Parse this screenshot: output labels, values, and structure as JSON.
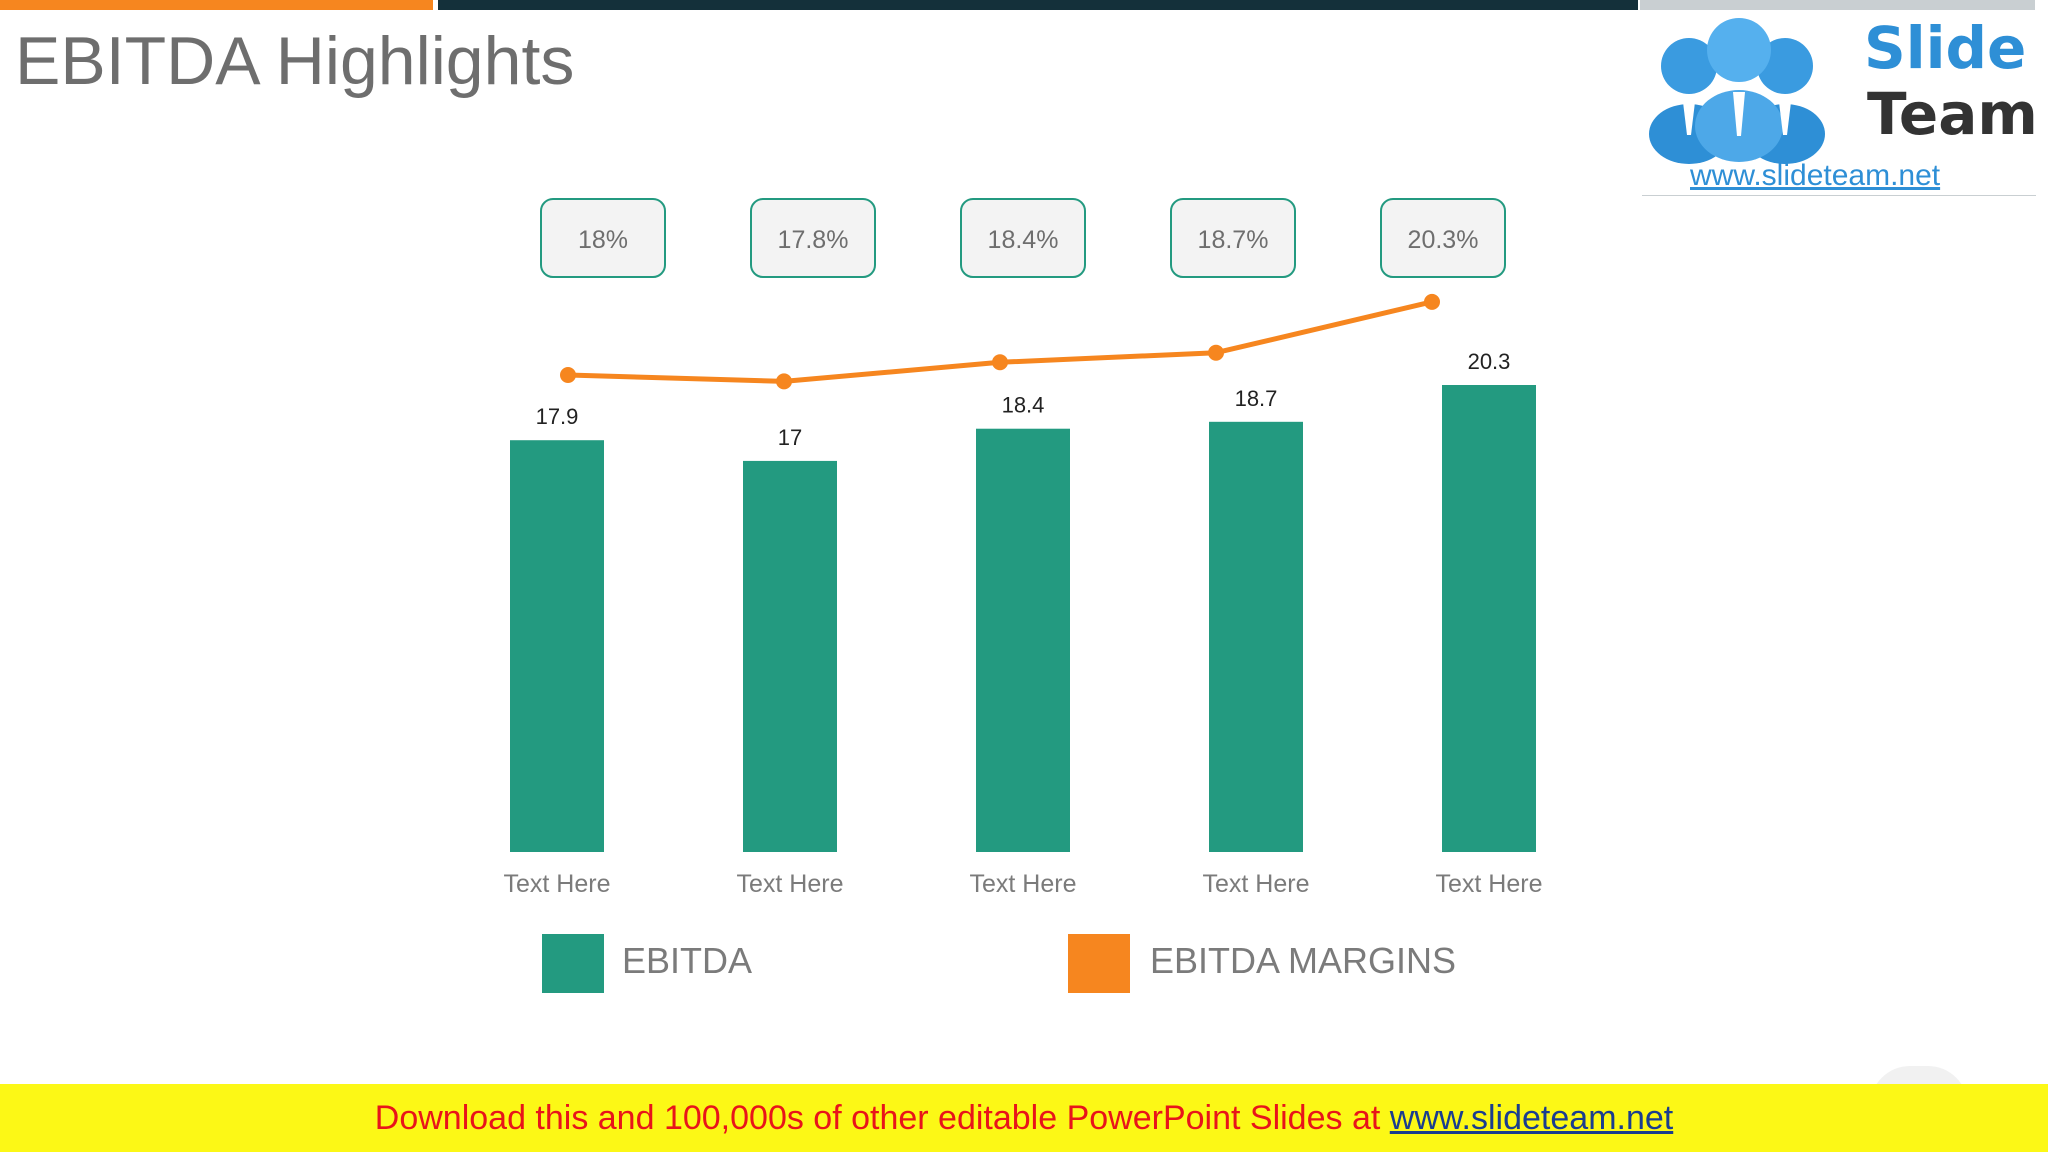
{
  "slide": {
    "title": "EBITDA Highlights"
  },
  "logo": {
    "line1": "Slide",
    "line2": "Team",
    "url": "www.slideteam.net"
  },
  "chart_data": {
    "type": "bar",
    "categories": [
      "Text Here",
      "Text Here",
      "Text Here",
      "Text Here",
      "Text Here"
    ],
    "series": [
      {
        "name": "EBITDA",
        "type": "bar",
        "values": [
          17.9,
          17,
          18.4,
          18.7,
          20.3
        ],
        "data_labels": [
          "17.9",
          "17",
          "18.4",
          "18.7",
          "20.3"
        ]
      },
      {
        "name": "EBITDA MARGINS",
        "type": "line",
        "values": [
          18,
          17.8,
          18.4,
          18.7,
          20.3
        ],
        "data_labels": [
          "18%",
          "17.8%",
          "18.4%",
          "18.7%",
          "20.3%"
        ]
      }
    ],
    "title": "",
    "xlabel": "",
    "ylabel": "",
    "ylim": [
      0,
      20.3
    ],
    "grid": false,
    "legend_position": "bottom",
    "colors": {
      "bar": "#239A80",
      "line": "#F6861F",
      "callout_border": "#239A80",
      "callout_fill": "#F3F3F3"
    }
  },
  "footer": {
    "text": "Download this and 100,000s of other editable PowerPoint Slides at ",
    "link": "www.slideteam.net"
  }
}
